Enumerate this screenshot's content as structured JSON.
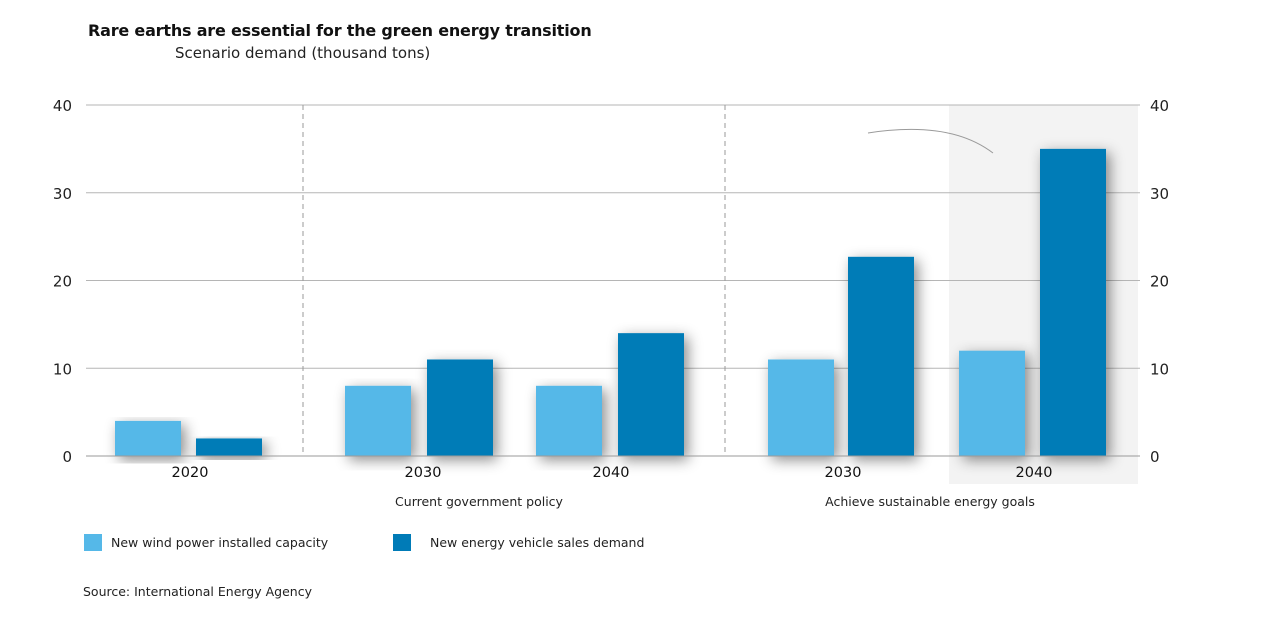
{
  "chart_data": {
    "type": "bar",
    "title": "Rare earths are essential for the green energy transition",
    "subtitle": "Scenario demand (thousand tons)",
    "categories": [
      "2020",
      "2030",
      "2040",
      "2030",
      "2040"
    ],
    "groups": [
      {
        "label": "",
        "categories": [
          0
        ]
      },
      {
        "label": "Current government policy",
        "categories": [
          1,
          2
        ]
      },
      {
        "label": "Achieve sustainable energy goals",
        "categories": [
          3,
          4
        ]
      }
    ],
    "series": [
      {
        "name": "New wind power installed capacity",
        "color": "#55b8e8",
        "values": [
          4,
          8,
          8,
          11,
          12
        ]
      },
      {
        "name": "New energy vehicle sales demand",
        "color": "#007bb7",
        "values": [
          2,
          11,
          14,
          22.7,
          35
        ]
      }
    ],
    "ylim": [
      0,
      40
    ],
    "yticks": [
      0,
      10,
      20,
      30,
      40
    ],
    "ytick_labels": [
      "0",
      "10",
      "20",
      "30",
      "40"
    ],
    "highlighted_category": 4,
    "grid": true,
    "legend_position": "bottom-left",
    "source": "Source: International Energy Agency"
  }
}
